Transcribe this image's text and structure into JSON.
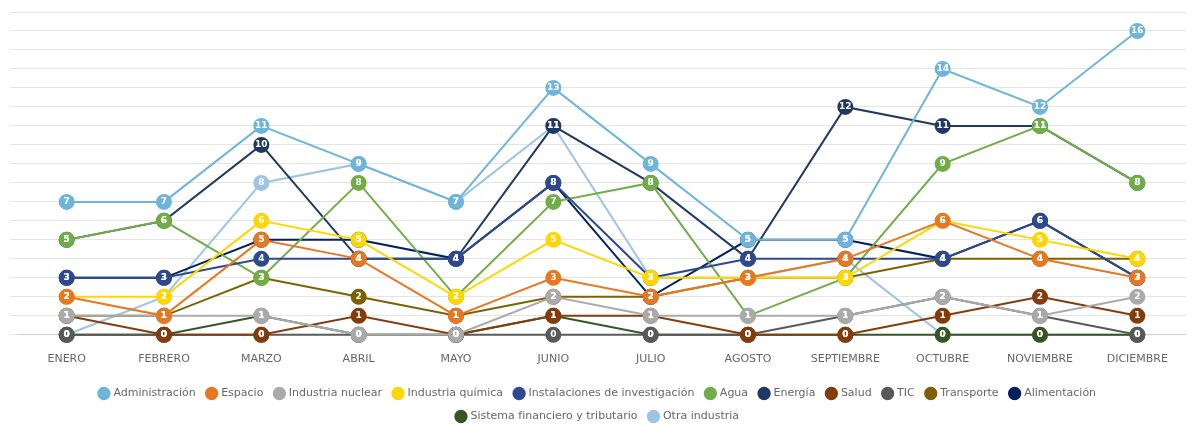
{
  "chart_data": {
    "type": "line",
    "categories": [
      "ENERO",
      "FEBRERO",
      "MARZO",
      "ABRIL",
      "MAYO",
      "JUNIO",
      "JULIO",
      "AGOSTO",
      "SEPTIEMBRE",
      "OCTUBRE",
      "NOVIEMBRE",
      "DICIEMBRE"
    ],
    "series": [
      {
        "name": "Administración",
        "color": "#6EB4DC",
        "values": [
          7,
          7,
          11,
          9,
          7,
          13,
          9,
          5,
          5,
          14,
          12,
          16
        ]
      },
      {
        "name": "Espacio",
        "color": "#E87722",
        "values": [
          2,
          1,
          5,
          4,
          1,
          3,
          2,
          3,
          4,
          6,
          4,
          3
        ]
      },
      {
        "name": "Industria nuclear",
        "color": "#AAAAAA",
        "values": [
          1,
          1,
          1,
          0,
          0,
          2,
          1,
          1,
          1,
          2,
          1,
          2
        ]
      },
      {
        "name": "Industria química",
        "color": "#FFD700",
        "values": [
          2,
          2,
          6,
          5,
          2,
          5,
          3,
          3,
          3,
          6,
          5,
          4
        ]
      },
      {
        "name": "Instalaciones de investigación",
        "color": "#2E4A8E",
        "values": [
          3,
          3,
          4,
          4,
          4,
          8,
          3,
          4,
          4,
          4,
          6,
          3
        ]
      },
      {
        "name": "Agua",
        "color": "#70AD47",
        "values": [
          5,
          6,
          3,
          8,
          2,
          7,
          8,
          1,
          3,
          9,
          11,
          8
        ]
      },
      {
        "name": "Energía",
        "color": "#1F3864",
        "values": [
          5,
          6,
          10,
          4,
          4,
          11,
          8,
          4,
          12,
          11,
          11,
          8
        ]
      },
      {
        "name": "Salud",
        "color": "#843C0C",
        "values": [
          1,
          0,
          0,
          1,
          0,
          1,
          1,
          0,
          0,
          1,
          2,
          1
        ]
      },
      {
        "name": "TIC",
        "color": "#595959",
        "values": [
          0,
          0,
          0,
          0,
          0,
          0,
          0,
          0,
          1,
          2,
          1,
          0
        ]
      },
      {
        "name": "Transporte",
        "color": "#7F6000",
        "values": [
          1,
          1,
          3,
          2,
          1,
          2,
          2,
          3,
          3,
          4,
          4,
          4
        ]
      },
      {
        "name": "Alimentación",
        "color": "#002060",
        "values": [
          3,
          3,
          5,
          5,
          4,
          8,
          2,
          5,
          5,
          4,
          6,
          3
        ]
      },
      {
        "name": "Sistema financiero y tributario",
        "color": "#375623",
        "values": [
          0,
          0,
          1,
          0,
          0,
          1,
          0,
          0,
          0,
          0,
          0,
          0
        ]
      },
      {
        "name": "Otra industria",
        "color": "#9DC3E6",
        "values": [
          0,
          2,
          8,
          9,
          7,
          11,
          3,
          3,
          4,
          0,
          0,
          0
        ]
      }
    ],
    "ylim": [
      0,
      17
    ],
    "yticks": [
      0,
      1,
      2,
      3,
      4,
      5,
      6,
      7,
      8,
      9,
      10,
      11,
      12,
      13,
      14,
      15,
      16,
      17
    ],
    "grid": true,
    "tick_labels": "x",
    "legend": "bottom",
    "marker": "circle",
    "data_labels": true
  }
}
